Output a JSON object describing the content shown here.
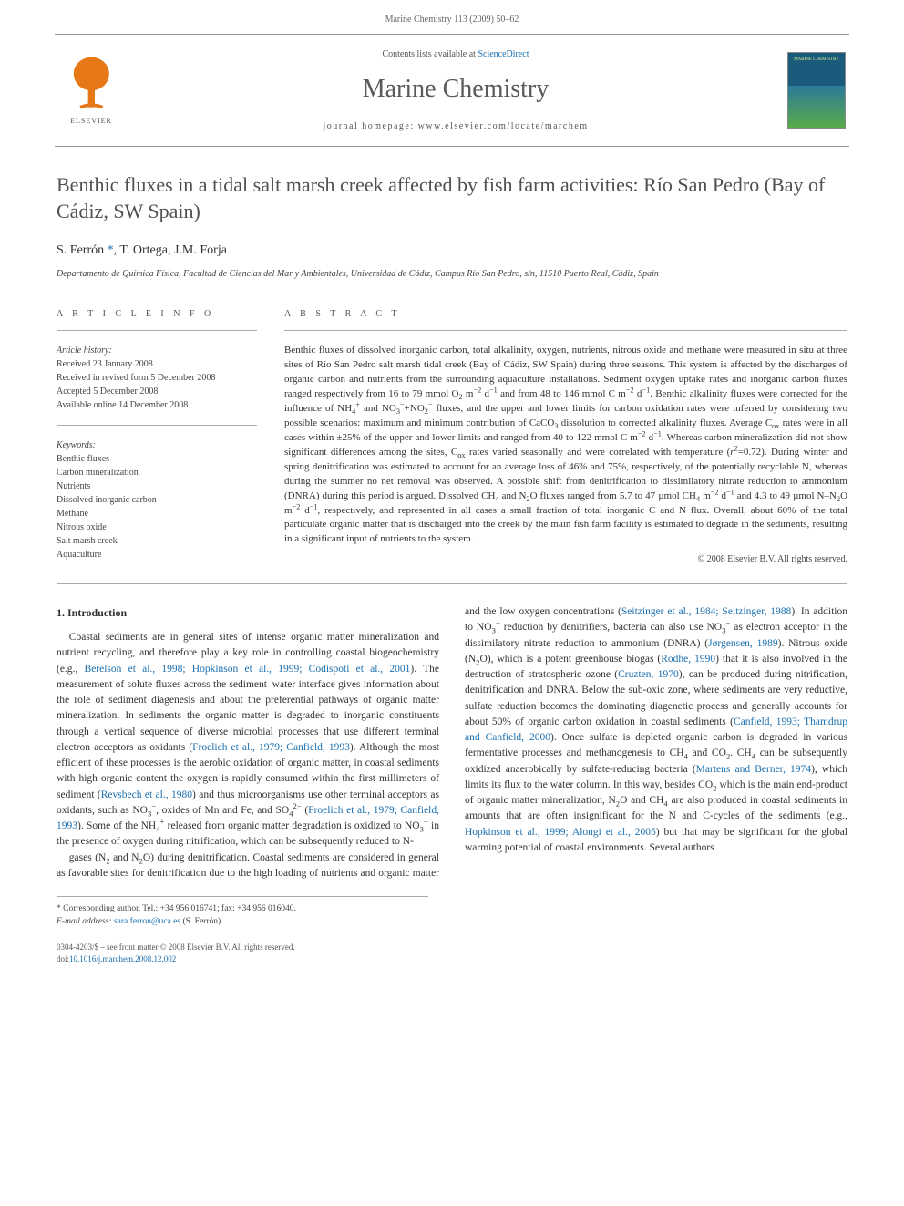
{
  "colors": {
    "link": "#1a6fb0",
    "accent": "#e67817",
    "text": "#333333",
    "muted": "#666666",
    "rule": "#aaaaaa",
    "cover_bg": "#1a5a7a"
  },
  "fonts": {
    "body_family": "Georgia, 'Times New Roman', serif",
    "title_size_pt": 22,
    "journal_name_size_pt": 28,
    "body_size_pt": 11.5,
    "abstract_size_pt": 11,
    "meta_size_pt": 10
  },
  "header": {
    "running_head": "Marine Chemistry 113 (2009) 50–62"
  },
  "banner": {
    "publisher": "ELSEVIER",
    "contents_prefix": "Contents lists available at ",
    "contents_link": "ScienceDirect",
    "journal_name": "Marine Chemistry",
    "homepage_prefix": "journal homepage: ",
    "homepage_url": "www.elsevier.com/locate/marchem",
    "cover_title": "MARINE CHEMISTRY"
  },
  "article": {
    "title": "Benthic fluxes in a tidal salt marsh creek affected by fish farm activities: Río San Pedro (Bay of Cádiz, SW Spain)",
    "authors_prefix": "S. Ferrón ",
    "authors_marker": "*",
    "authors_rest": ", T. Ortega, J.M. Forja",
    "affiliation": "Departamento de Química Física, Facultad de Ciencias del Mar y Ambientales, Universidad de Cádiz, Campus Río San Pedro, s/n, 11510 Puerto Real, Cádiz, Spain"
  },
  "meta": {
    "info_heading": "A R T I C L E   I N F O",
    "abstract_heading": "A B S T R A C T",
    "history_label": "Article history:",
    "history": [
      "Received 23 January 2008",
      "Received in revised form 5 December 2008",
      "Accepted 5 December 2008",
      "Available online 14 December 2008"
    ],
    "keywords_label": "Keywords:",
    "keywords": [
      "Benthic fluxes",
      "Carbon mineralization",
      "Nutrients",
      "Dissolved inorganic carbon",
      "Methane",
      "Nitrous oxide",
      "Salt marsh creek",
      "Aquaculture"
    ]
  },
  "abstract": {
    "text_html": "Benthic fluxes of dissolved inorganic carbon, total alkalinity, oxygen, nutrients, nitrous oxide and methane were measured in situ at three sites of Río San Pedro salt marsh tidal creek (Bay of Cádiz, SW Spain) during three seasons. This system is affected by the discharges of organic carbon and nutrients from the surrounding aquaculture installations. Sediment oxygen uptake rates and inorganic carbon fluxes ranged respectively from 16 to 79 mmol O<sub>2</sub> m<sup>−2</sup> d<sup>−1</sup> and from 48 to 146 mmol C m<sup>−2</sup> d<sup>−1</sup>. Benthic alkalinity fluxes were corrected for the influence of NH<sub>4</sub><sup>+</sup> and NO<sub>3</sub><sup>−</sup>+NO<sub>2</sub><sup>−</sup> fluxes, and the upper and lower limits for carbon oxidation rates were inferred by considering two possible scenarios: maximum and minimum contribution of CaCO<sub>3</sub> dissolution to corrected alkalinity fluxes. Average C<sub>ox</sub> rates were in all cases within ±25% of the upper and lower limits and ranged from 40 to 122 mmol C m<sup>−2</sup> d<sup>−1</sup>. Whereas carbon mineralization did not show significant differences among the sites, C<sub>ox</sub> rates varied seasonally and were correlated with temperature (<i>r</i><sup>2</sup>=0.72). During winter and spring denitrification was estimated to account for an average loss of 46% and 75%, respectively, of the potentially recyclable N, whereas during the summer no net removal was observed. A possible shift from denitrification to dissimilatory nitrate reduction to ammonium (DNRA) during this period is argued. Dissolved CH<sub>4</sub> and N<sub>2</sub>O fluxes ranged from 5.7 to 47 µmol CH<sub>4</sub> m<sup>−2</sup> d<sup>−1</sup> and 4.3 to 49 µmol N–N<sub>2</sub>O m<sup>−2</sup> d<sup>−1</sup>, respectively, and represented in all cases a small fraction of total inorganic C and N flux. Overall, about 60% of the total particulate organic matter that is discharged into the creek by the main fish farm facility is estimated to degrade in the sediments, resulting in a significant input of nutrients to the system.",
    "copyright": "© 2008 Elsevier B.V. All rights reserved."
  },
  "intro": {
    "heading": "1. Introduction",
    "para1_html": "Coastal sediments are in general sites of intense organic matter mineralization and nutrient recycling, and therefore play a key role in controlling coastal biogeochemistry (e.g., <a href='#'>Berelson et al., 1998; Hopkinson et al., 1999; Codispoti et al., 2001</a>). The measurement of solute fluxes across the sediment–water interface gives information about the role of sediment diagenesis and about the preferential pathways of organic matter mineralization. In sediments the organic matter is degraded to inorganic constituents through a vertical sequence of diverse microbial processes that use different terminal electron acceptors as oxidants (<a href='#'>Froelich et al., 1979; Canfield, 1993</a>). Although the most efficient of these processes is the aerobic oxidation of organic matter, in coastal sediments with high organic content the oxygen is rapidly consumed within the first millimeters of sediment (<a href='#'>Revsbech et al., 1980</a>) and thus microorganisms use other terminal acceptors as oxidants, such as NO<sub>3</sub><sup>−</sup>, oxides of Mn and Fe, and SO<sub>4</sub><sup>2−</sup> (<a href='#'>Froelich et al., 1979; Canfield, 1993</a>). Some of the NH<sub>4</sub><sup>+</sup> released from organic matter degradation is oxidized to NO<sub>3</sub><sup>−</sup> in the presence of oxygen during nitrification, which can be subsequently reduced to N-",
    "para2_html": "gases (N<sub>2</sub> and N<sub>2</sub>O) during denitrification. Coastal sediments are considered in general as favorable sites for denitrification due to the high loading of nutrients and organic matter and the low oxygen concentrations (<a href='#'>Seitzinger et al., 1984; Seitzinger, 1988</a>). In addition to NO<sub>3</sub><sup>−</sup> reduction by denitrifiers, bacteria can also use NO<sub>3</sub><sup>−</sup> as electron acceptor in the dissimilatory nitrate reduction to ammonium (DNRA) (<a href='#'>Jørgensen, 1989</a>). Nitrous oxide (N<sub>2</sub>O), which is a potent greenhouse biogas (<a href='#'>Rodhe, 1990</a>) that it is also involved in the destruction of stratospheric ozone (<a href='#'>Cruzten, 1970</a>), can be produced during nitrification, denitrification and DNRA. Below the sub-oxic zone, where sediments are very reductive, sulfate reduction becomes the dominating diagenetic process and generally accounts for about 50% of organic carbon oxidation in coastal sediments (<a href='#'>Canfield, 1993; Thamdrup and Canfield, 2000</a>). Once sulfate is depleted organic carbon is degraded in various fermentative processes and methanogenesis to CH<sub>4</sub> and CO<sub>2</sub>. CH<sub>4</sub> can be subsequently oxidized anaerobically by sulfate-reducing bacteria (<a href='#'>Martens and Berner, 1974</a>), which limits its flux to the water column. In this way, besides CO<sub>2</sub> which is the main end-product of organic matter mineralization, N<sub>2</sub>O and CH<sub>4</sub> are also produced in coastal sediments in amounts that are often insignificant for the N and C-cycles of the sediments (e.g., <a href='#'>Hopkinson et al., 1999; Alongi et al., 2005</a>) but that may be significant for the global warming potential of coastal environments. Several authors"
  },
  "footnotes": {
    "corr_label": "* Corresponding author. Tel.: +34 956 016741; fax: +34 956 016040.",
    "email_label": "E-mail address:",
    "email": "sara.ferron@uca.es",
    "email_suffix": "(S. Ferrón)."
  },
  "footer": {
    "line1": "0304-4203/$ – see front matter © 2008 Elsevier B.V. All rights reserved.",
    "doi_label": "doi:",
    "doi": "10.1016/j.marchem.2008.12.002"
  }
}
